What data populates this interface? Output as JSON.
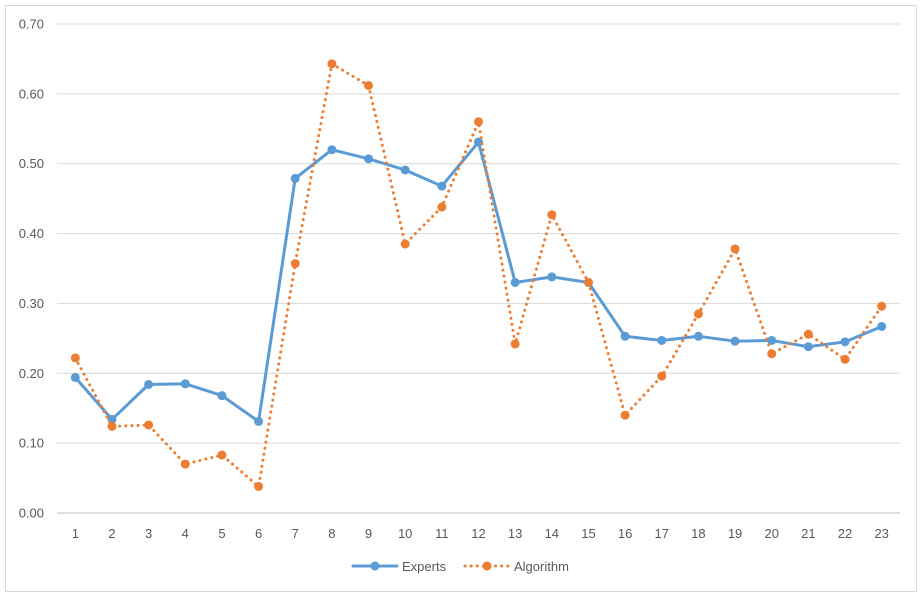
{
  "chart_data": {
    "type": "line",
    "title": "",
    "xlabel": "",
    "ylabel": "",
    "categories": [
      "1",
      "2",
      "3",
      "4",
      "5",
      "6",
      "7",
      "8",
      "9",
      "10",
      "11",
      "12",
      "13",
      "14",
      "15",
      "16",
      "17",
      "18",
      "19",
      "20",
      "21",
      "22",
      "23"
    ],
    "ylim": [
      0,
      0.7
    ],
    "yticks": [
      "0.00",
      "0.10",
      "0.20",
      "0.30",
      "0.40",
      "0.50",
      "0.60",
      "0.70"
    ],
    "grid": true,
    "legend_position": "bottom",
    "series": [
      {
        "name": "Experts",
        "color": "#5b9bd5",
        "style": "solid",
        "values": [
          0.194,
          0.134,
          0.184,
          0.185,
          0.168,
          0.131,
          0.479,
          0.52,
          0.507,
          0.491,
          0.468,
          0.531,
          0.33,
          0.338,
          0.33,
          0.253,
          0.247,
          0.253,
          0.246,
          0.247,
          0.238,
          0.245,
          0.267
        ]
      },
      {
        "name": "Algorithm",
        "color": "#ed7d31",
        "style": "dotted",
        "values": [
          0.222,
          0.124,
          0.126,
          0.07,
          0.083,
          0.038,
          0.357,
          0.643,
          0.612,
          0.385,
          0.438,
          0.56,
          0.242,
          0.427,
          0.33,
          0.14,
          0.196,
          0.285,
          0.378,
          0.228,
          0.256,
          0.22,
          0.296
        ]
      }
    ]
  }
}
